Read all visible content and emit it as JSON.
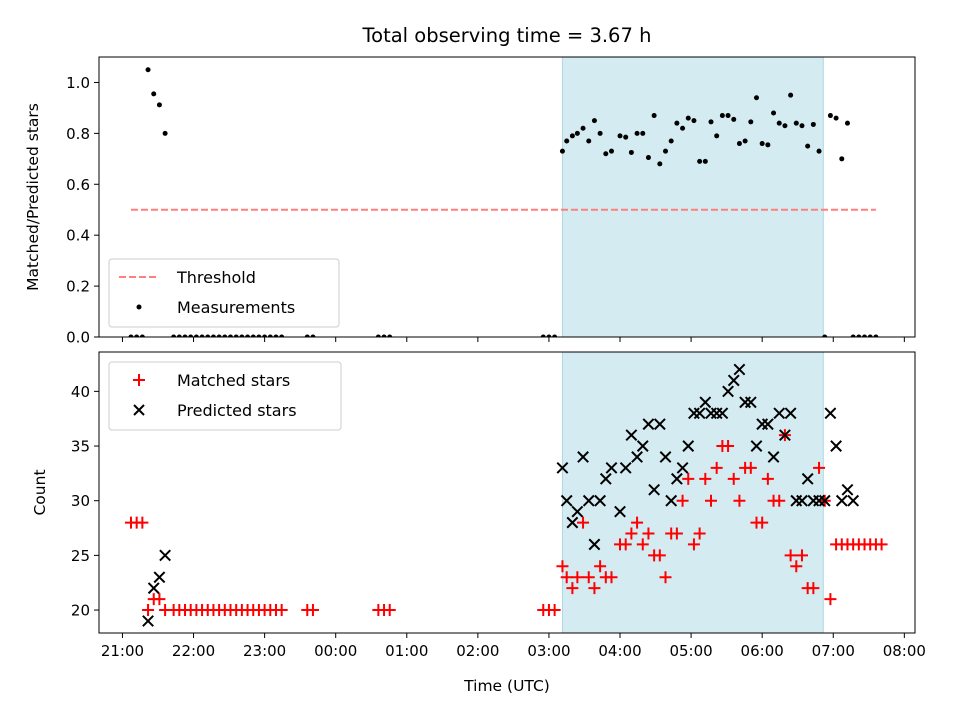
{
  "chart_data": {
    "title": "Total observing time = 3.67 h",
    "xlabel": "Time (UTC)",
    "x_unit": "hours (UTC, continuing past midnight)",
    "xlim": [
      20.67,
      32.15
    ],
    "xticks": [
      {
        "value": 21,
        "label": "21:00"
      },
      {
        "value": 22,
        "label": "22:00"
      },
      {
        "value": 23,
        "label": "23:00"
      },
      {
        "value": 24,
        "label": "00:00"
      },
      {
        "value": 25,
        "label": "01:00"
      },
      {
        "value": 26,
        "label": "02:00"
      },
      {
        "value": 27,
        "label": "03:00"
      },
      {
        "value": 28,
        "label": "04:00"
      },
      {
        "value": 29,
        "label": "05:00"
      },
      {
        "value": 30,
        "label": "06:00"
      },
      {
        "value": 31,
        "label": "07:00"
      },
      {
        "value": 32,
        "label": "08:00"
      }
    ],
    "shaded_interval": {
      "x_start": 27.19,
      "x_end": 30.86,
      "color": "#add8e6"
    },
    "panels": [
      {
        "type": "scatter",
        "ylabel": "Matched/Predicted stars",
        "ylim": [
          0,
          1.1
        ],
        "yticks": [
          "0.0",
          "0.2",
          "0.4",
          "0.6",
          "0.8",
          "1.0"
        ],
        "legend_position": "lower-left",
        "series": [
          {
            "name": "Threshold",
            "style": "dashed-line",
            "color": "#ff7f7f",
            "x": [
              21.12,
              31.6
            ],
            "y": [
              0.5,
              0.5
            ]
          },
          {
            "name": "Measurements",
            "style": "dot",
            "color": "#000000",
            "x": [
              21.12,
              21.2,
              21.28,
              21.36,
              21.44,
              21.52,
              21.6,
              21.72,
              21.8,
              21.88,
              21.96,
              22.04,
              22.12,
              22.2,
              22.28,
              22.36,
              22.44,
              22.52,
              22.6,
              22.68,
              22.76,
              22.84,
              22.92,
              23.0,
              23.08,
              23.16,
              23.24,
              23.6,
              23.68,
              24.6,
              24.68,
              24.76,
              26.92,
              27.0,
              27.08,
              27.19,
              27.25,
              27.33,
              27.4,
              27.48,
              27.56,
              27.64,
              27.72,
              27.8,
              27.88,
              28.0,
              28.08,
              28.16,
              28.24,
              28.32,
              28.4,
              28.48,
              28.56,
              28.64,
              28.72,
              28.8,
              28.88,
              28.96,
              29.04,
              29.12,
              29.2,
              29.28,
              29.36,
              29.44,
              29.52,
              29.6,
              29.68,
              29.76,
              29.84,
              29.92,
              30.0,
              30.08,
              30.16,
              30.24,
              30.32,
              30.4,
              30.48,
              30.56,
              30.64,
              30.72,
              30.8,
              30.88,
              30.96,
              31.04,
              31.12,
              31.2,
              31.28,
              31.36,
              31.44,
              31.52,
              31.6
            ],
            "y": [
              0,
              0,
              0,
              1.05,
              0.955,
              0.912,
              0.8,
              0,
              0,
              0,
              0,
              0,
              0,
              0,
              0,
              0,
              0,
              0,
              0,
              0,
              0,
              0,
              0,
              0,
              0,
              0,
              0,
              0,
              0,
              0,
              0,
              0,
              0,
              0,
              0,
              0.73,
              0.77,
              0.79,
              0.8,
              0.82,
              0.77,
              0.85,
              0.8,
              0.72,
              0.73,
              0.79,
              0.785,
              0.725,
              0.8,
              0.8,
              0.705,
              0.87,
              0.68,
              0.73,
              0.77,
              0.84,
              0.82,
              0.86,
              0.85,
              0.69,
              0.69,
              0.845,
              0.79,
              0.87,
              0.87,
              0.855,
              0.76,
              0.77,
              0.845,
              0.94,
              0.76,
              0.755,
              0.88,
              0.84,
              0.83,
              0.95,
              0.84,
              0.83,
              0.75,
              0.835,
              0.73,
              0,
              0.87,
              0.86,
              0.7,
              0.84,
              0,
              0,
              0,
              0,
              0
            ]
          }
        ]
      },
      {
        "type": "scatter",
        "ylabel": "Count",
        "ylim": [
          17.9,
          43.6
        ],
        "yticks": [
          "20",
          "25",
          "30",
          "35",
          "40"
        ],
        "legend_position": "upper-left",
        "series": [
          {
            "name": "Matched stars",
            "style": "plus",
            "color": "#ff0000",
            "x": [
              21.12,
              21.2,
              21.28,
              21.36,
              21.44,
              21.52,
              21.6,
              21.72,
              21.8,
              21.88,
              21.96,
              22.04,
              22.12,
              22.2,
              22.28,
              22.36,
              22.44,
              22.52,
              22.6,
              22.68,
              22.76,
              22.84,
              22.92,
              23.0,
              23.08,
              23.16,
              23.24,
              23.6,
              23.68,
              24.6,
              24.68,
              24.76,
              26.92,
              27.0,
              27.08,
              27.19,
              27.25,
              27.33,
              27.4,
              27.48,
              27.56,
              27.64,
              27.72,
              27.8,
              27.88,
              28.0,
              28.08,
              28.16,
              28.24,
              28.32,
              28.4,
              28.48,
              28.56,
              28.64,
              28.72,
              28.8,
              28.88,
              28.96,
              29.04,
              29.12,
              29.2,
              29.28,
              29.36,
              29.44,
              29.52,
              29.6,
              29.68,
              29.76,
              29.84,
              29.92,
              30.0,
              30.08,
              30.16,
              30.24,
              30.32,
              30.4,
              30.48,
              30.56,
              30.64,
              30.72,
              30.8,
              30.88,
              30.96,
              31.04,
              31.12,
              31.2,
              31.28,
              31.36,
              31.44,
              31.52,
              31.6,
              31.68
            ],
            "y": [
              28,
              28,
              28,
              20,
              21,
              21,
              20,
              20,
              20,
              20,
              20,
              20,
              20,
              20,
              20,
              20,
              20,
              20,
              20,
              20,
              20,
              20,
              20,
              20,
              20,
              20,
              20,
              20,
              20,
              20,
              20,
              20,
              20,
              20,
              20,
              24,
              23,
              22,
              23,
              28,
              23,
              22,
              24,
              23,
              23,
              26,
              26,
              27,
              28,
              26,
              27,
              25,
              25,
              23,
              27,
              27,
              30,
              32,
              26,
              27,
              32,
              30,
              33,
              35,
              35,
              32,
              30,
              33,
              33,
              28,
              28,
              32,
              30,
              30,
              36,
              25,
              24,
              25,
              22,
              22,
              33,
              30,
              21,
              26,
              26,
              26,
              26,
              26,
              26,
              26,
              26,
              26
            ]
          },
          {
            "name": "Predicted stars",
            "style": "x",
            "color": "#000000",
            "x": [
              21.36,
              21.44,
              21.52,
              21.6,
              27.19,
              27.25,
              27.33,
              27.4,
              27.48,
              27.56,
              27.64,
              27.72,
              27.8,
              27.88,
              28.0,
              28.08,
              28.16,
              28.24,
              28.32,
              28.4,
              28.48,
              28.56,
              28.64,
              28.72,
              28.8,
              28.88,
              28.96,
              29.04,
              29.12,
              29.2,
              29.28,
              29.36,
              29.44,
              29.52,
              29.6,
              29.68,
              29.76,
              29.84,
              29.92,
              30.0,
              30.08,
              30.16,
              30.24,
              30.32,
              30.4,
              30.48,
              30.56,
              30.64,
              30.72,
              30.8,
              30.88,
              30.96,
              31.04,
              31.12,
              31.2,
              31.28
            ],
            "y": [
              19,
              22,
              23,
              25,
              33,
              30,
              28,
              29,
              34,
              30,
              26,
              30,
              32,
              33,
              29,
              33,
              36,
              34,
              35,
              37,
              31,
              37,
              34,
              30,
              32,
              33,
              35,
              38,
              38,
              39,
              38,
              38,
              38,
              40,
              41,
              42,
              39,
              39,
              35,
              37,
              37,
              34,
              38,
              36,
              38,
              30,
              30,
              32,
              30,
              30,
              30,
              38,
              35,
              30,
              31,
              30
            ]
          }
        ]
      }
    ]
  }
}
